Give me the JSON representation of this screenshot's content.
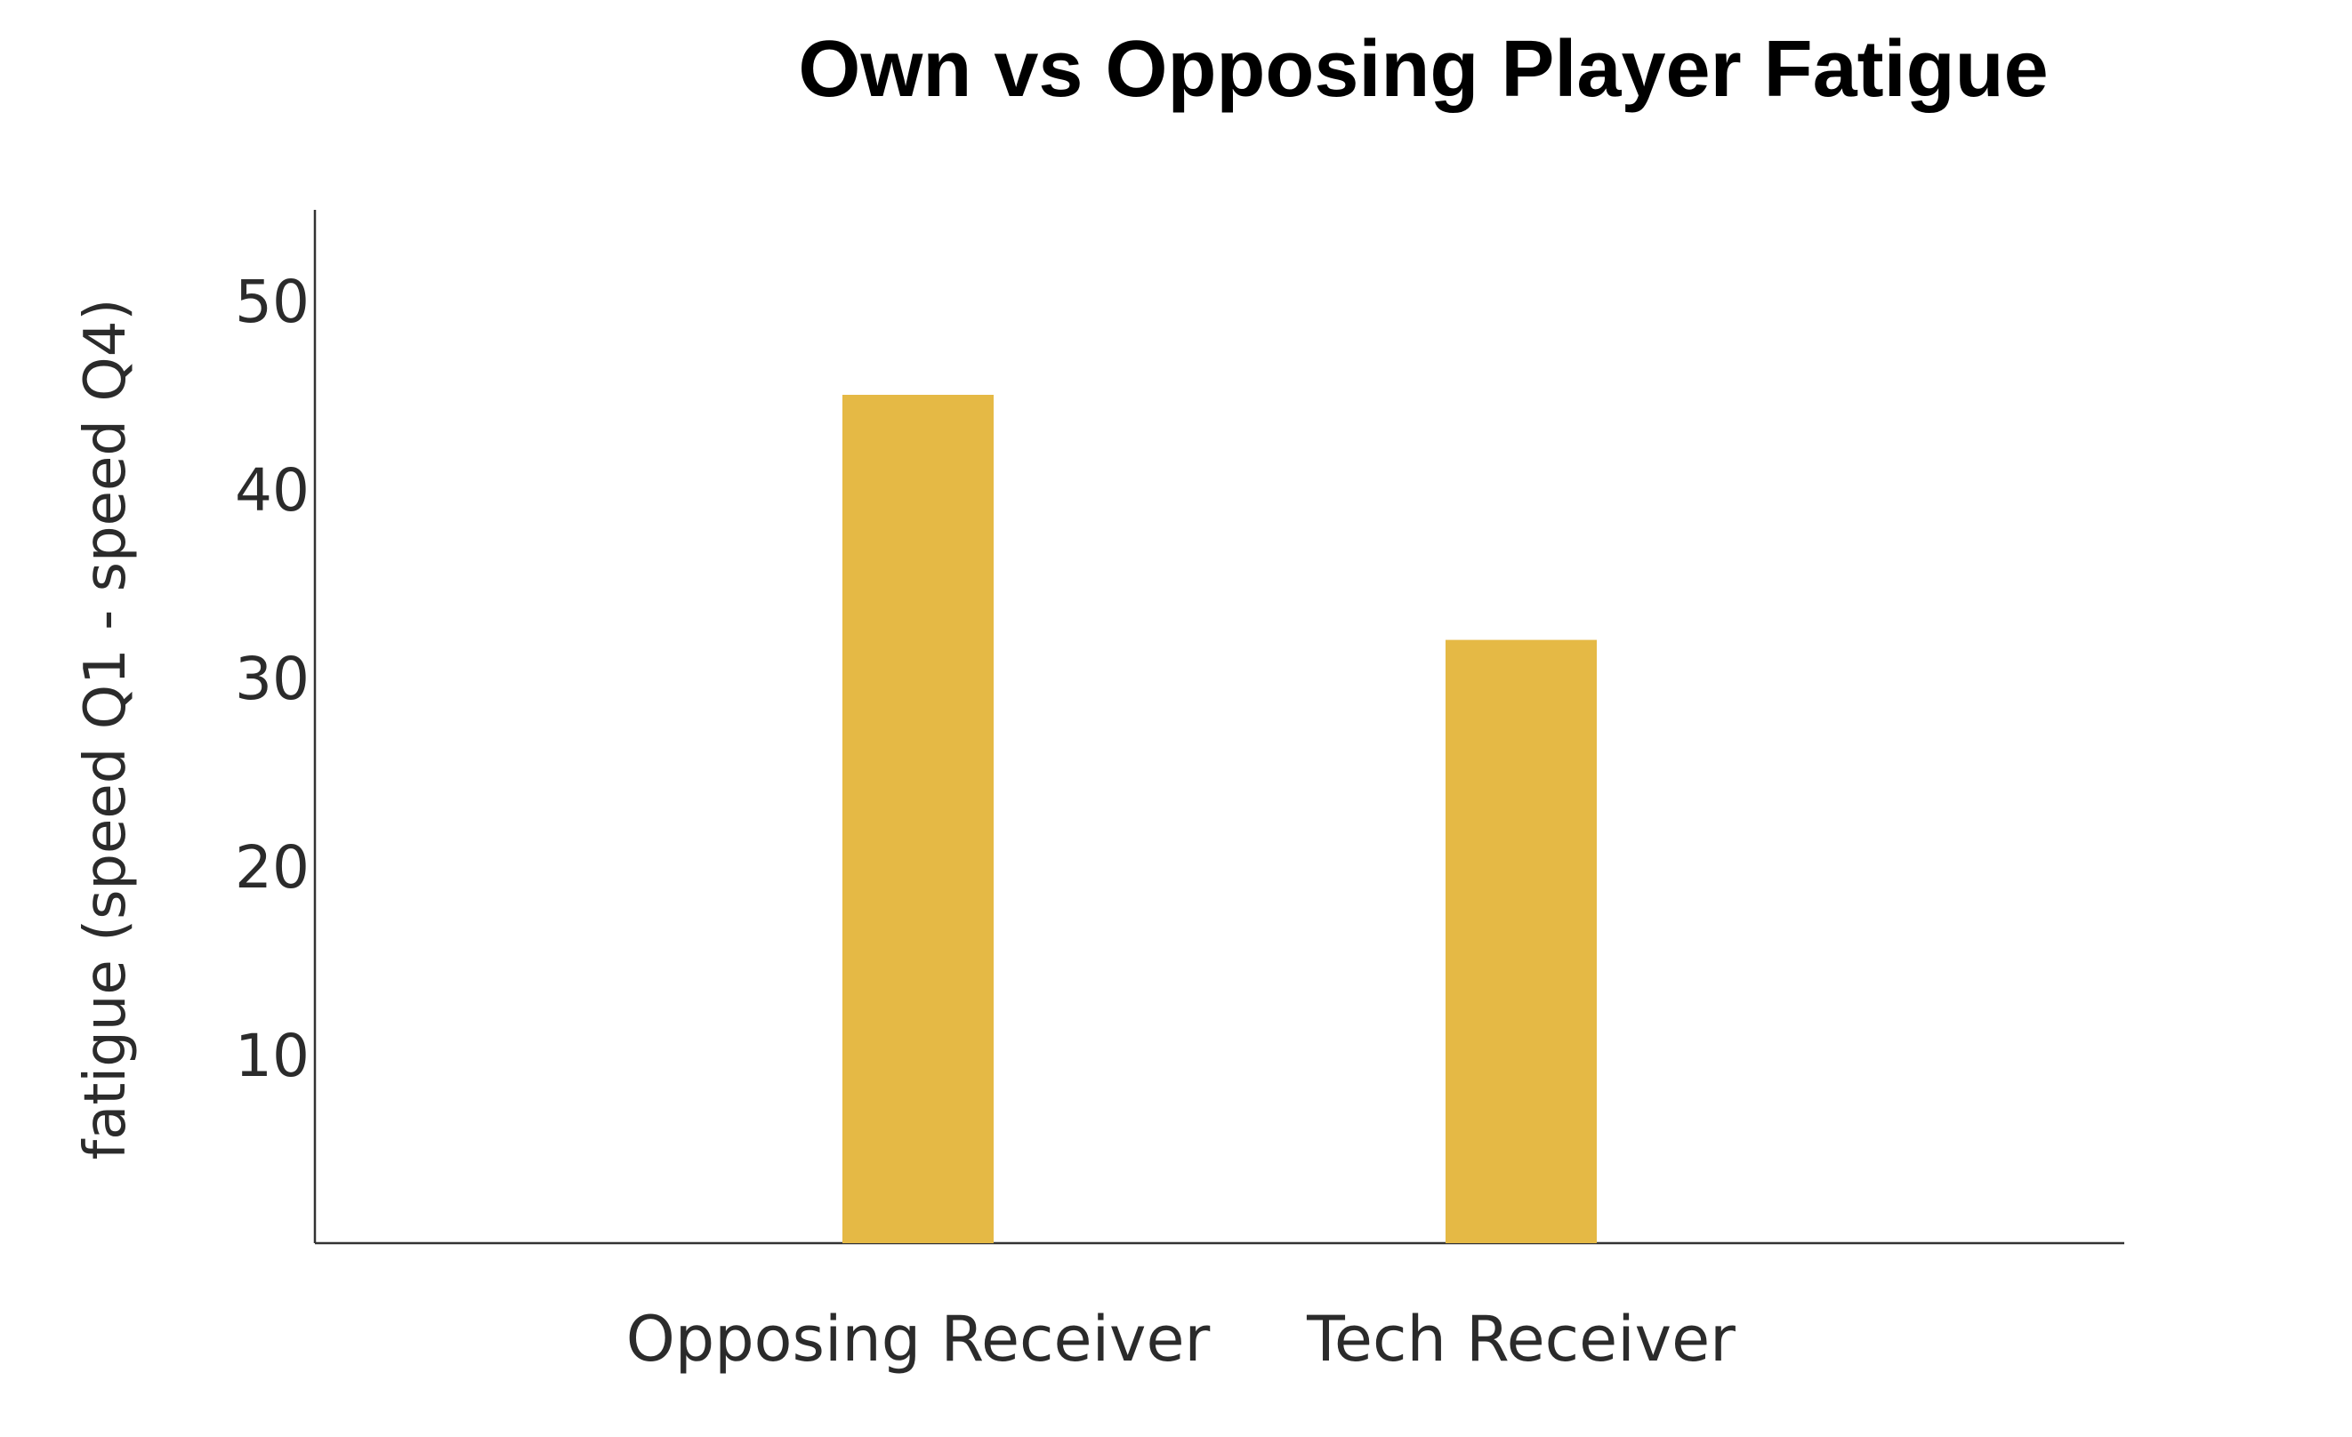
{
  "chart_data": {
    "type": "bar",
    "title": "Own vs Opposing Player Fatigue",
    "ylabel": "fatigue (speed Q1 - speed Q4)",
    "xlabel": "",
    "categories": [
      "Opposing Receiver",
      "Tech Receiver"
    ],
    "values": [
      45,
      32
    ],
    "ylim": [
      0,
      55
    ],
    "yticks": [
      10,
      20,
      30,
      40,
      50
    ],
    "bar_color": "#E5B945",
    "grid": false,
    "legend": "none"
  }
}
